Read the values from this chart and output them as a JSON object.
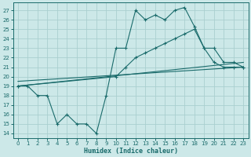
{
  "xlabel": "Humidex (Indice chaleur)",
  "bg_color": "#cce8e8",
  "grid_color": "#aacfcf",
  "line_color": "#1a6b6b",
  "xlim": [
    -0.5,
    23.5
  ],
  "ylim": [
    13.5,
    27.8
  ],
  "yticks": [
    14,
    15,
    16,
    17,
    18,
    19,
    20,
    21,
    22,
    23,
    24,
    25,
    26,
    27
  ],
  "xticks": [
    0,
    1,
    2,
    3,
    4,
    5,
    6,
    7,
    8,
    9,
    10,
    11,
    12,
    13,
    14,
    15,
    16,
    17,
    18,
    19,
    20,
    21,
    22,
    23
  ],
  "line1_x": [
    0,
    1,
    2,
    3,
    4,
    5,
    6,
    7,
    8,
    9,
    10,
    11,
    12,
    13,
    14,
    15,
    16,
    17,
    18,
    19,
    20,
    21,
    22,
    23
  ],
  "line1_y": [
    19,
    19,
    18,
    18,
    15,
    16,
    15,
    15,
    14,
    18,
    23,
    23,
    27,
    26,
    26.5,
    26,
    27,
    27.3,
    25.3,
    23,
    21.5,
    21,
    21,
    21
  ],
  "line2_x": [
    0,
    10,
    11,
    12,
    13,
    14,
    15,
    16,
    17,
    18,
    19,
    20,
    21,
    22,
    23
  ],
  "line2_y": [
    19,
    20,
    21,
    22,
    22.5,
    23,
    23.5,
    24,
    24.5,
    25,
    23,
    23,
    21.5,
    21.5,
    21
  ],
  "line3_x": [
    0,
    23
  ],
  "line3_y": [
    19,
    21.5
  ],
  "line4_x": [
    0,
    23
  ],
  "line4_y": [
    19.5,
    21.0
  ]
}
